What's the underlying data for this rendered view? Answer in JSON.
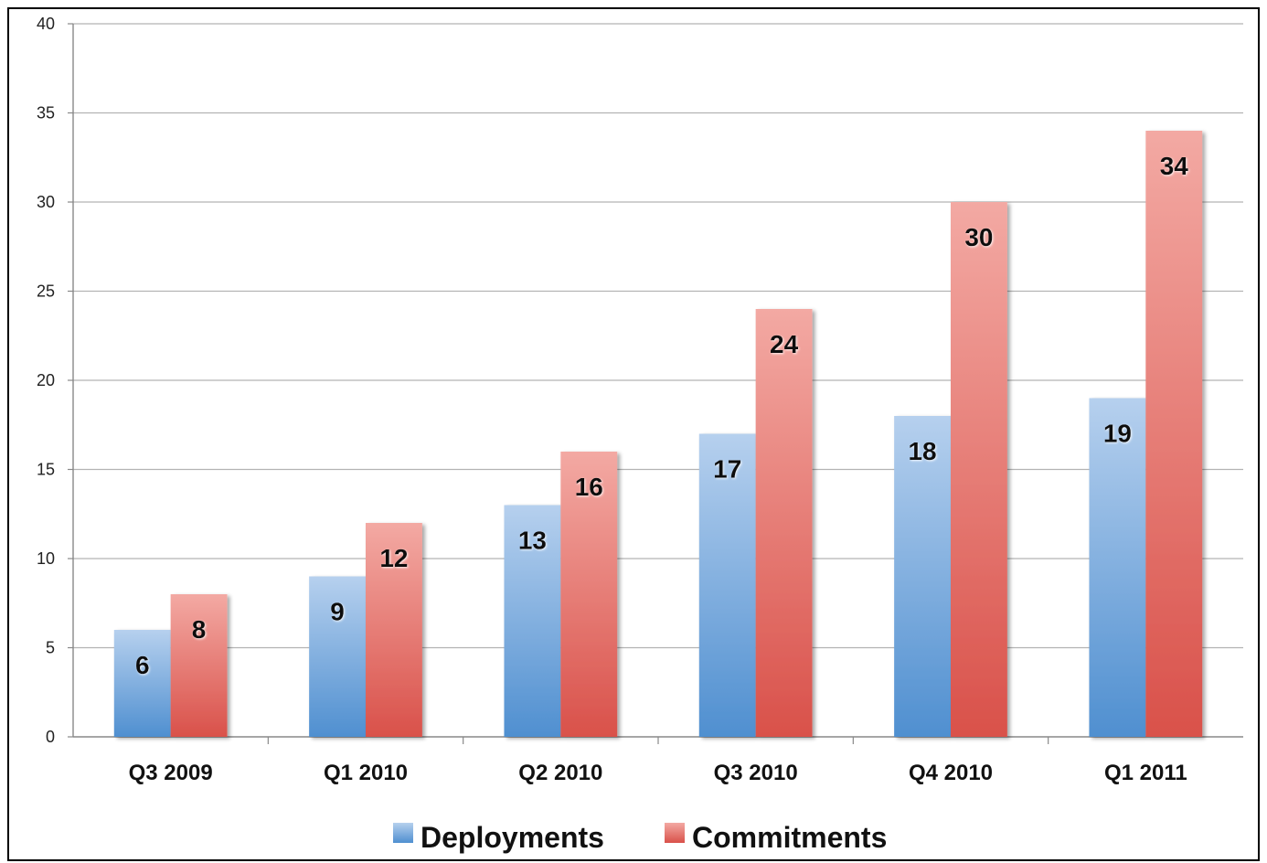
{
  "chart_data": {
    "type": "bar",
    "categories": [
      "Q3 2009",
      "Q1 2010",
      "Q2 2010",
      "Q3 2010",
      "Q4 2010",
      "Q1 2011"
    ],
    "series": [
      {
        "name": "Deployments",
        "values": [
          6,
          9,
          13,
          17,
          18,
          19
        ],
        "color": "#4f8fd0"
      },
      {
        "name": "Commitments",
        "values": [
          8,
          12,
          16,
          24,
          30,
          34
        ],
        "color": "#d9514a"
      }
    ],
    "ylim": [
      0,
      40
    ],
    "yticks": [
      0,
      5,
      10,
      15,
      20,
      25,
      30,
      35,
      40
    ],
    "grid": true,
    "data_labels": true,
    "legend": {
      "position": "bottom"
    }
  }
}
